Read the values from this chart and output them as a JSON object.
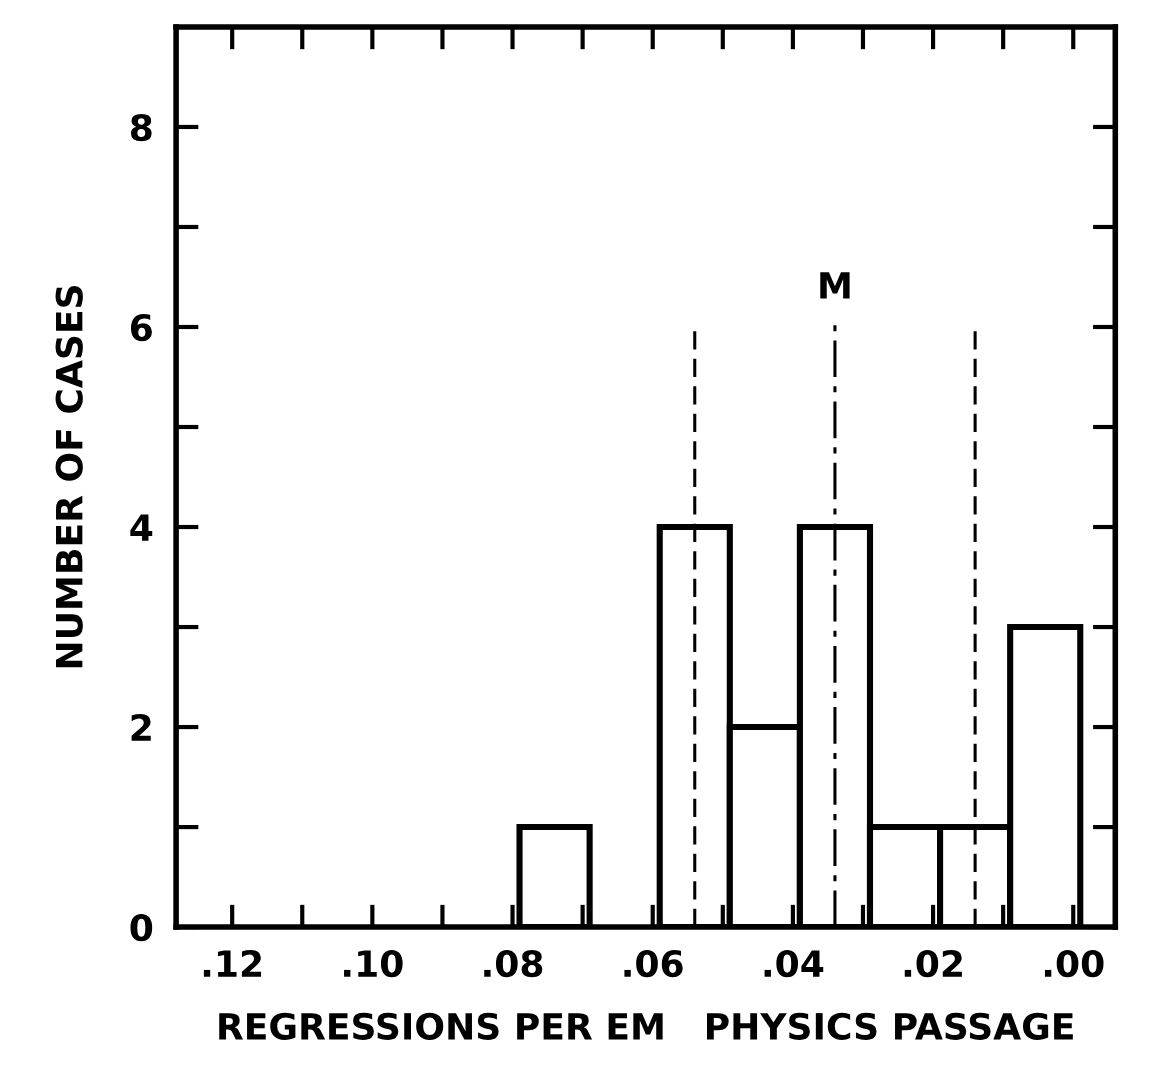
{
  "chart_data": {
    "type": "histogram",
    "xlabel": "REGRESSIONS PER EM   PHYSICS PASSAGE",
    "ylabel": "NUMBER OF CASES",
    "bins": [
      0.079,
      0.069,
      0.059,
      0.049,
      0.039,
      0.029,
      0.019,
      0.009,
      -0.001
    ],
    "values": [
      1,
      0,
      4,
      2,
      4,
      1,
      1,
      3
    ],
    "color": "#ffffff",
    "xlim": [
      0.128,
      -0.006
    ],
    "xticks": [
      {
        "value": 0.12,
        "label": ".12"
      },
      {
        "value": 0.11,
        "label": null
      },
      {
        "value": 0.1,
        "label": ".10"
      },
      {
        "value": 0.09,
        "label": null
      },
      {
        "value": 0.08,
        "label": ".08"
      },
      {
        "value": 0.07,
        "label": null
      },
      {
        "value": 0.06,
        "label": ".06"
      },
      {
        "value": 0.05,
        "label": null
      },
      {
        "value": 0.04,
        "label": ".04"
      },
      {
        "value": 0.03,
        "label": null
      },
      {
        "value": 0.02,
        "label": ".02"
      },
      {
        "value": 0.01,
        "label": null
      },
      {
        "value": 0.0,
        "label": ".00"
      }
    ],
    "ylim": [
      0,
      9
    ],
    "yticks": [
      0,
      {
        "value": 1,
        "label": null
      },
      2,
      {
        "value": 3,
        "label": null
      },
      4,
      {
        "value": 5,
        "label": null
      },
      6,
      {
        "value": 7,
        "label": null
      },
      8
    ],
    "ref_lines": [
      {
        "axis": "x",
        "value": 0.054,
        "line_style": "dashed"
      },
      {
        "axis": "x",
        "value": 0.034,
        "label": "M",
        "line_style": "dashdot"
      },
      {
        "axis": "x",
        "value": 0.014,
        "line_style": "dashed"
      }
    ],
    "grid": false,
    "legend": false
  }
}
